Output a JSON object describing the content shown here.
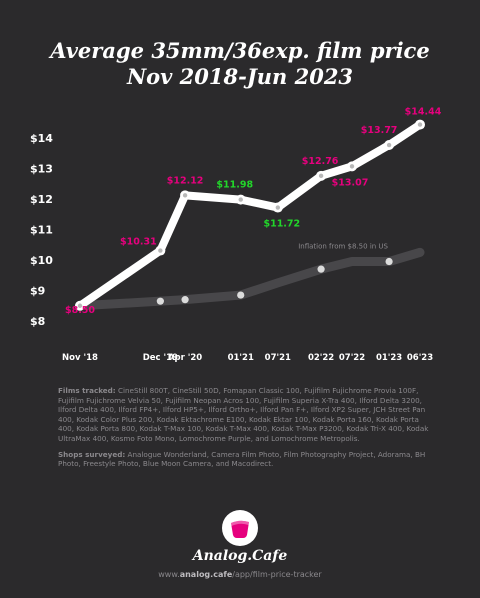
{
  "title": {
    "line1": "Average 35mm/36exp. film price",
    "line2": "Nov 2018-Jun 2023"
  },
  "colors": {
    "background": "#2b2a2c",
    "main_line": "#ffffff",
    "inflation_line": "#48474a",
    "label_up": "#e6007e",
    "label_down": "#22d62a"
  },
  "chart_data": {
    "type": "line",
    "title": "Average 35mm/36exp. film price",
    "subtitle": "Nov 2018-Jun 2023",
    "xlabel": "",
    "ylabel": "",
    "categories": [
      "Nov '18",
      "Dec '19",
      "Apr '20",
      "01'21",
      "07'21",
      "02'22",
      "07'22",
      "01'23",
      "06'23"
    ],
    "x_dates": [
      "2018-11",
      "2019-12",
      "2020-04",
      "2021-01",
      "2021-07",
      "2022-02",
      "2022-07",
      "2023-01",
      "2023-06"
    ],
    "y_ticks": [
      "$8",
      "$9",
      "$10",
      "$11",
      "$12",
      "$13",
      "$14"
    ],
    "ylim": [
      8,
      14
    ],
    "grid": false,
    "series": [
      {
        "name": "",
        "values": [
          8.5,
          10.31,
          12.12,
          11.98,
          11.72,
          12.76,
          13.07,
          13.77,
          14.44
        ],
        "labels": [
          "$8.50",
          "$10.31",
          "$12.12",
          "$11.98",
          "$11.72",
          "$12.76",
          "$13.07",
          "$13.77",
          "$14.44"
        ],
        "label_colors": [
          "up",
          "up",
          "up",
          "down",
          "down",
          "up",
          "up",
          "up",
          "up"
        ]
      },
      {
        "name": "Inflation from $8.50 in US",
        "values": [
          8.5,
          8.65,
          8.7,
          8.85,
          9.25,
          9.7,
          9.95,
          9.95,
          10.25
        ],
        "marker_points": [
          0,
          1,
          2,
          3,
          5,
          7
        ]
      }
    ]
  },
  "notes": {
    "films_heading": "Films tracked:",
    "films_text": "CineStill 800T, CineStill 50D, Fomapan Classic 100, Fujifilm Fujichrome Provia 100F, Fujifilm Fujichrome Velvia 50, Fujifilm Neopan Acros 100, Fujifilm Superia X-Tra 400, Ilford Delta 3200, Ilford Delta 400, Ilford FP4+, Ilford HP5+, Ilford Ortho+, Ilford Pan F+, Ilford XP2 Super, JCH Street Pan 400, Kodak Color Plus 200, Kodak Ektachrome E100, Kodak Ektar 100, Kodak Porta 160, Kodak Porta 400, Kodak Porta 800, Kodak T-Max 100, Kodak T-Max 400, Kodak T-Max P3200, Kodak Tri-X 400, Kodak UltraMax 400, Kosmo Foto Mono, Lomochrome Purple, and Lomochrome Metropolis.",
    "shops_heading": "Shops surveyed:",
    "shops_text": "Analogue Wonderland, Camera Film Photo, Film Photography Project, Adorama, BH Photo, Freestyle Photo, Blue Moon Camera, and Macodirect."
  },
  "brand": {
    "name": "Analog.Cafe",
    "url_prefix": "www.",
    "url_domain": "analog.cafe",
    "url_path": "/app/film-price-tracker"
  }
}
